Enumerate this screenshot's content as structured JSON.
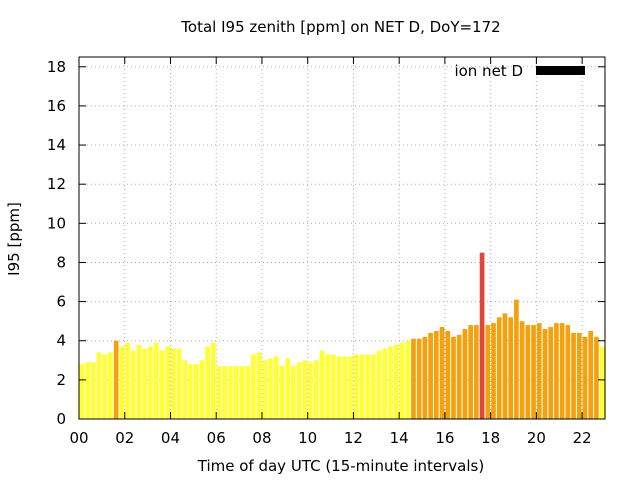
{
  "chart_data": {
    "type": "bar",
    "title": "Total I95 zenith [ppm] on NET D, DoY=172",
    "xlabel": "Time of day UTC (15-minute intervals)",
    "ylabel": "I95 [ppm]",
    "xlim": [
      0,
      23
    ],
    "ylim": [
      0,
      18.5
    ],
    "x_ticks": [
      0,
      2,
      4,
      6,
      8,
      10,
      12,
      14,
      16,
      18,
      20,
      22
    ],
    "x_tick_labels": [
      "00",
      "02",
      "04",
      "06",
      "08",
      "10",
      "12",
      "14",
      "16",
      "18",
      "20",
      "22"
    ],
    "y_ticks": [
      0,
      2,
      4,
      6,
      8,
      10,
      12,
      14,
      16,
      18
    ],
    "y_tick_labels": [
      "0",
      "2",
      "4",
      "6",
      "8",
      "10",
      "12",
      "14",
      "16",
      "18"
    ],
    "grid": true,
    "legend_position": "top-right",
    "legend": {
      "label": "ion net D",
      "color": "#000000"
    },
    "series": [
      {
        "interval_hours": 0.25,
        "x_start": 0,
        "values": [
          2.8,
          2.9,
          2.9,
          3.4,
          3.3,
          3.4,
          4.0,
          3.7,
          3.9,
          3.5,
          3.8,
          3.6,
          3.7,
          3.9,
          3.5,
          3.7,
          3.6,
          3.6,
          3.0,
          2.8,
          2.8,
          3.0,
          3.7,
          3.9,
          2.7,
          2.7,
          2.7,
          2.7,
          2.7,
          2.7,
          3.3,
          3.4,
          3.0,
          3.1,
          3.2,
          2.7,
          3.1,
          2.7,
          2.9,
          3.0,
          2.9,
          3.0,
          3.5,
          3.3,
          3.3,
          3.2,
          3.2,
          3.2,
          3.3,
          3.3,
          3.3,
          3.3,
          3.5,
          3.6,
          3.7,
          3.8,
          3.9,
          4.0,
          4.1,
          4.1,
          4.2,
          4.4,
          4.5,
          4.7,
          4.5,
          4.2,
          4.3,
          4.6,
          4.8,
          4.8,
          8.5,
          4.8,
          4.9,
          5.2,
          5.4,
          5.2,
          6.1,
          5.0,
          4.8,
          4.8,
          4.9,
          4.6,
          4.7,
          4.9,
          4.9,
          4.8,
          4.4,
          4.4,
          4.2,
          4.5,
          4.2,
          3.7
        ],
        "colors": [
          "#ffff33",
          "#ffff33",
          "#ffff33",
          "#ffff33",
          "#ffff33",
          "#ffff33",
          "#f5a10d",
          "#ffff33",
          "#ffff33",
          "#ffff33",
          "#ffff33",
          "#ffff33",
          "#ffff33",
          "#ffff33",
          "#ffff33",
          "#ffff33",
          "#ffff33",
          "#ffff33",
          "#ffff33",
          "#ffff33",
          "#ffff33",
          "#ffff33",
          "#ffff33",
          "#ffff33",
          "#ffff33",
          "#ffff33",
          "#ffff33",
          "#ffff33",
          "#ffff33",
          "#ffff33",
          "#ffff33",
          "#ffff33",
          "#ffff33",
          "#ffff33",
          "#ffff33",
          "#ffff33",
          "#ffff33",
          "#ffff33",
          "#ffff33",
          "#ffff33",
          "#ffff33",
          "#ffff33",
          "#ffff33",
          "#ffff33",
          "#ffff33",
          "#ffff33",
          "#ffff33",
          "#ffff33",
          "#ffff33",
          "#ffff33",
          "#ffff33",
          "#ffff33",
          "#ffff33",
          "#ffff33",
          "#ffff33",
          "#ffff33",
          "#ffff33",
          "#ffff33",
          "#f5a10d",
          "#f5a10d",
          "#f5a10d",
          "#f5a10d",
          "#f5a10d",
          "#f5a10d",
          "#f5a10d",
          "#f5a10d",
          "#f5a10d",
          "#f5a10d",
          "#f5a10d",
          "#f5a10d",
          "#e0473a",
          "#f5a10d",
          "#f5a10d",
          "#f5a10d",
          "#f5a10d",
          "#f5a10d",
          "#f5a10d",
          "#f5a10d",
          "#f5a10d",
          "#f5a10d",
          "#f5a10d",
          "#f5a10d",
          "#f5a10d",
          "#f5a10d",
          "#f5a10d",
          "#f5a10d",
          "#f5a10d",
          "#f5a10d",
          "#f5a10d",
          "#f5a10d",
          "#f5a10d",
          "#ffff33"
        ]
      }
    ]
  }
}
